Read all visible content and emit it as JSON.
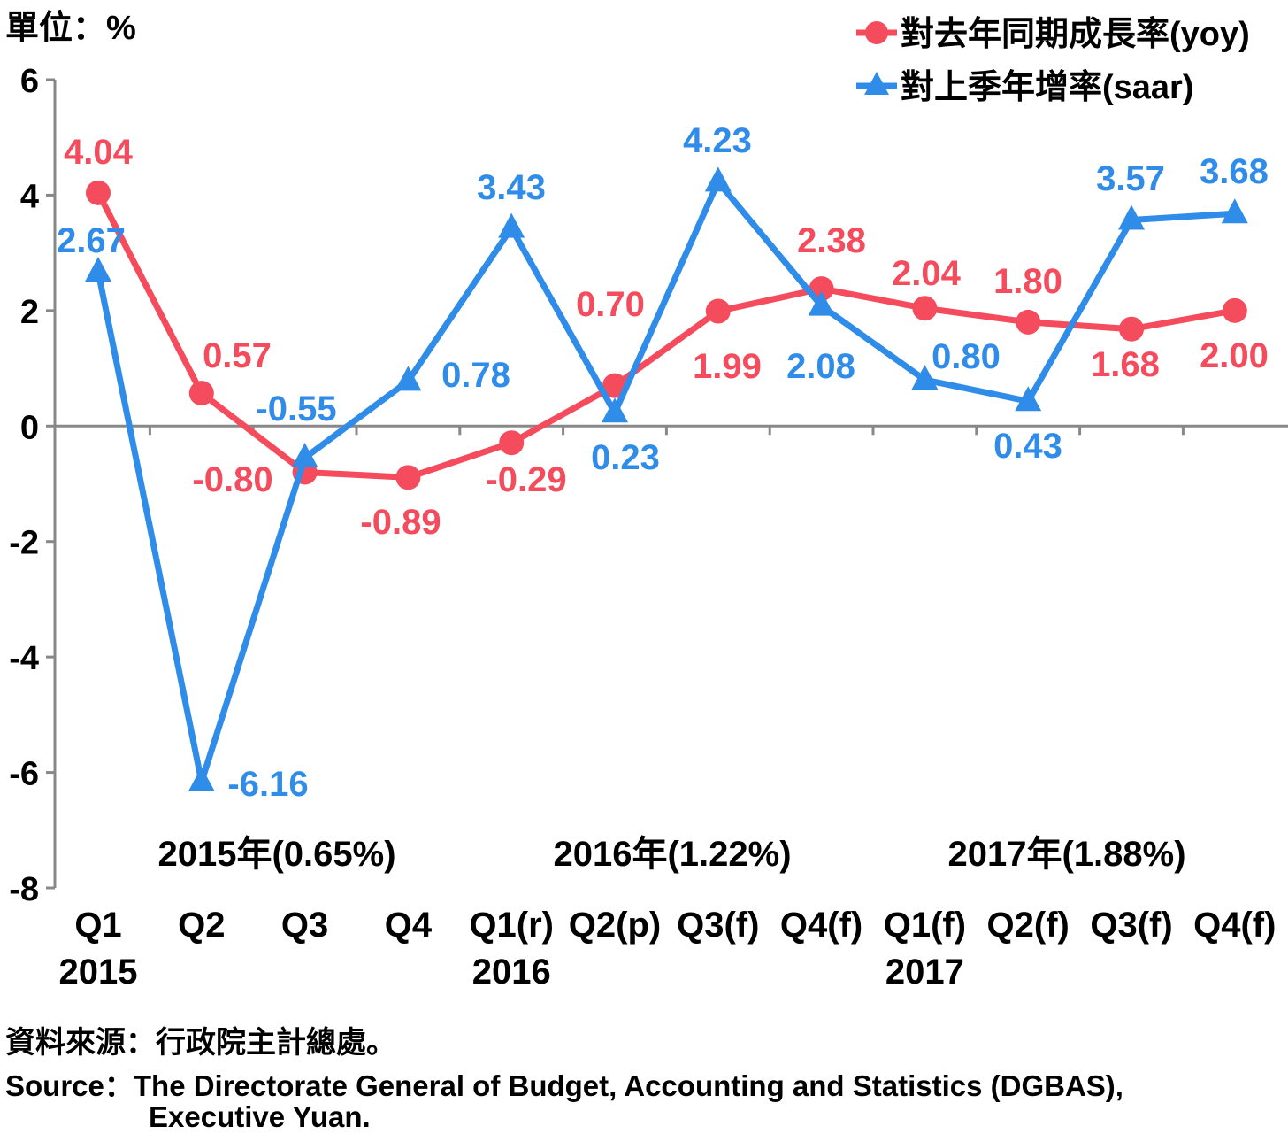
{
  "chart_data": {
    "type": "line",
    "unit_label": "單位：%",
    "categories": [
      "Q1",
      "Q2",
      "Q3",
      "Q4",
      "Q1(r)",
      "Q2(p)",
      "Q3(f)",
      "Q4(f)",
      "Q1(f)",
      "Q2(f)",
      "Q3(f)",
      "Q4(f)"
    ],
    "year_labels": [
      {
        "index": 0,
        "label": "2015"
      },
      {
        "index": 4,
        "label": "2016"
      },
      {
        "index": 8,
        "label": "2017"
      }
    ],
    "annual_annotations": [
      "2015年(0.65%)",
      "2016年(1.22%)",
      "2017年(1.88%)"
    ],
    "ylim": [
      -8,
      6
    ],
    "yticks": [
      6,
      4,
      2,
      0,
      -2,
      -4,
      -6,
      -8
    ],
    "ytick_labels": [
      "6",
      "4",
      "2",
      "0",
      "-2",
      "-4",
      "-6",
      "-8"
    ],
    "series": [
      {
        "name": "對去年同期成長率(yoy)",
        "color": "#f44b5d",
        "marker": "circle",
        "values": [
          4.04,
          0.57,
          -0.8,
          -0.89,
          -0.29,
          0.7,
          1.99,
          2.38,
          2.04,
          1.8,
          1.68,
          2.0
        ],
        "labels": [
          "4.04",
          "0.57",
          "-0.80",
          "-0.89",
          "-0.29",
          "0.70",
          "1.99",
          "2.38",
          "2.04",
          "1.80",
          "1.68",
          "2.00"
        ]
      },
      {
        "name": "對上季年增率(saar)",
        "color": "#2f8ce8",
        "marker": "triangle",
        "values": [
          2.67,
          -6.16,
          -0.55,
          0.78,
          3.43,
          0.23,
          4.23,
          2.08,
          0.8,
          0.43,
          3.57,
          3.68
        ],
        "labels": [
          "2.67",
          "-6.16",
          "-0.55",
          "0.78",
          "3.43",
          "0.23",
          "4.23",
          "2.08",
          "0.80",
          "0.43",
          "3.57",
          "3.68"
        ]
      }
    ],
    "legend_position": "top-right",
    "grid": false
  },
  "footer": {
    "source_zh": "資料來源：行政院主計總處。",
    "source_en_1": "Source：The Directorate General of Budget, Accounting and Statistics (DGBAS),",
    "source_en_2": "Executive Yuan."
  }
}
